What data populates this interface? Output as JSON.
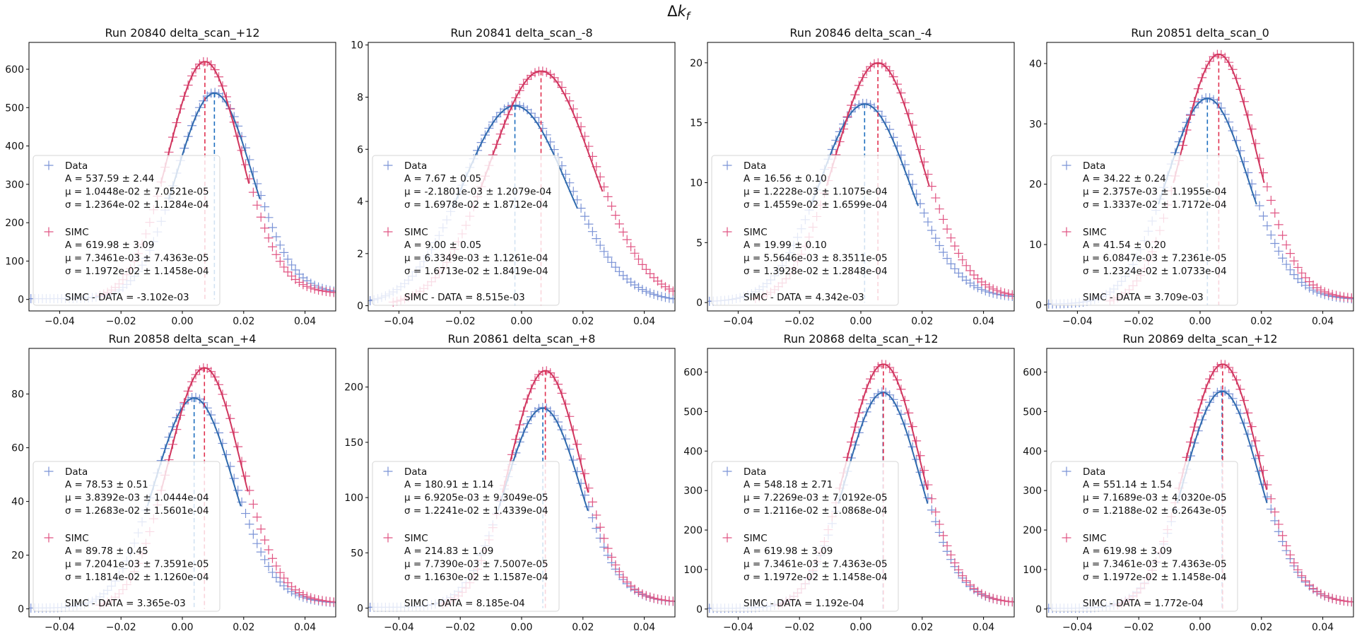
{
  "figure": {
    "suptitle_delta": "Δ",
    "suptitle_symbol": "k",
    "suptitle_subscript": "f",
    "legend_data_label": "Data",
    "legend_simc_label": "SIMC",
    "colors": {
      "data": "#7b93d6",
      "data_fit": "#2f6aad",
      "simc": "#e05583",
      "simc_fit": "#d0365e",
      "data_line": "#1f6fbf",
      "simc_line": "#e0304f"
    }
  },
  "chart_data": [
    {
      "type": "scatter",
      "title": "Run 20840 delta_scan_+12",
      "xlim": [
        -0.05,
        0.05
      ],
      "ylim": [
        -30,
        670
      ],
      "xticks": [
        -0.04,
        -0.02,
        0.0,
        0.02,
        0.04
      ],
      "xtick_labels": [
        "−0.04",
        "−0.02",
        "0.00",
        "0.02",
        "0.04"
      ],
      "yticks": [
        0,
        100,
        200,
        300,
        400,
        500,
        600
      ],
      "ytick_labels": [
        "0",
        "100",
        "200",
        "300",
        "400",
        "500",
        "600"
      ],
      "series": [
        {
          "name": "Data",
          "A": 537.59,
          "mu": 0.010448,
          "sigma": 0.012364,
          "tail": 0.6
        },
        {
          "name": "SIMC",
          "A": 619.98,
          "mu": 0.0073461,
          "sigma": 0.011972,
          "tail": 0.6
        }
      ],
      "legend_lines": {
        "data": [
          "A = 537.59 ± 2.44",
          "μ = 1.0448e-02 ± 7.0521e-05",
          "σ = 1.2364e-02 ± 1.1284e-04"
        ],
        "simc": [
          "A = 619.98 ± 3.09",
          "μ = 7.3461e-03 ± 7.4363e-05",
          "σ = 1.1972e-02 ± 1.1458e-04"
        ],
        "diff": "SIMC - DATA = -3.102e-03"
      }
    },
    {
      "type": "scatter",
      "title": "Run 20841 delta_scan_-8",
      "xlim": [
        -0.05,
        0.05
      ],
      "ylim": [
        -0.2,
        10.1
      ],
      "xticks": [
        -0.04,
        -0.02,
        0.0,
        0.02,
        0.04
      ],
      "xtick_labels": [
        "−0.04",
        "−0.02",
        "0.00",
        "0.02",
        "0.04"
      ],
      "yticks": [
        0,
        2,
        4,
        6,
        8,
        10
      ],
      "ytick_labels": [
        "0",
        "2",
        "4",
        "6",
        "8",
        "10"
      ],
      "series": [
        {
          "name": "Data",
          "A": 7.67,
          "mu": -0.0021801,
          "sigma": 0.016978,
          "tail": 1.2
        },
        {
          "name": "SIMC",
          "A": 9.0,
          "mu": 0.0063349,
          "sigma": 0.016713,
          "tail": 1.6
        }
      ],
      "legend_lines": {
        "data": [
          "A = 7.67 ± 0.05",
          "μ = -2.1801e-03 ± 1.2079e-04",
          "σ = 1.6978e-02 ± 1.8712e-04"
        ],
        "simc": [
          "A = 9.00 ± 0.05",
          "μ = 6.3349e-03 ± 1.1261e-04",
          "σ = 1.6713e-02 ± 1.8419e-04"
        ],
        "diff": "SIMC - DATA = 8.515e-03"
      }
    },
    {
      "type": "scatter",
      "title": "Run 20846 delta_scan_-4",
      "xlim": [
        -0.05,
        0.05
      ],
      "ylim": [
        -0.7,
        21.7
      ],
      "xticks": [
        -0.04,
        -0.02,
        0.0,
        0.02,
        0.04
      ],
      "xtick_labels": [
        "−0.04",
        "−0.02",
        "0.00",
        "0.02",
        "0.04"
      ],
      "yticks": [
        0,
        5,
        10,
        15,
        20
      ],
      "ytick_labels": [
        "0",
        "5",
        "10",
        "15",
        "20"
      ],
      "series": [
        {
          "name": "Data",
          "A": 16.56,
          "mu": 0.0012228,
          "sigma": 0.014559,
          "tail": 1.5
        },
        {
          "name": "SIMC",
          "A": 19.99,
          "mu": 0.0055646,
          "sigma": 0.013928,
          "tail": 1.6
        }
      ],
      "legend_lines": {
        "data": [
          "A = 16.56 ± 0.10",
          "μ = 1.2228e-03 ± 1.1075e-04",
          "σ = 1.4559e-02 ± 1.6599e-04"
        ],
        "simc": [
          "A = 19.99 ± 0.10",
          "μ = 5.5646e-03 ± 8.3511e-05",
          "σ = 1.3928e-02 ± 1.2848e-04"
        ],
        "diff": "SIMC - DATA = 4.342e-03"
      }
    },
    {
      "type": "scatter",
      "title": "Run 20851 delta_scan_0",
      "xlim": [
        -0.05,
        0.05
      ],
      "ylim": [
        -1,
        43.5
      ],
      "xticks": [
        -0.04,
        -0.02,
        0.0,
        0.02,
        0.04
      ],
      "xtick_labels": [
        "−0.04",
        "−0.02",
        "0.00",
        "0.02",
        "0.04"
      ],
      "yticks": [
        0,
        10,
        20,
        30,
        40
      ],
      "ytick_labels": [
        "0",
        "10",
        "20",
        "30",
        "40"
      ],
      "series": [
        {
          "name": "Data",
          "A": 34.22,
          "mu": 0.0023757,
          "sigma": 0.013337,
          "tail": 1.3
        },
        {
          "name": "SIMC",
          "A": 41.54,
          "mu": 0.0060847,
          "sigma": 0.012324,
          "tail": 1.4
        }
      ],
      "legend_lines": {
        "data": [
          "A = 34.22 ± 0.24",
          "μ = 2.3757e-03 ± 1.1955e-04",
          "σ = 1.3337e-02 ± 1.7172e-04"
        ],
        "simc": [
          "A = 41.54 ± 0.20",
          "μ = 6.0847e-03 ± 7.2361e-05",
          "σ = 1.2324e-02 ± 1.0733e-04"
        ],
        "diff": "SIMC - DATA = 3.709e-03"
      }
    },
    {
      "type": "scatter",
      "title": "Run 20858 delta_scan_+4",
      "xlim": [
        -0.05,
        0.05
      ],
      "ylim": [
        -3,
        97
      ],
      "xticks": [
        -0.04,
        -0.02,
        0.0,
        0.02,
        0.04
      ],
      "xtick_labels": [
        "−0.04",
        "−0.02",
        "0.00",
        "0.02",
        "0.04"
      ],
      "yticks": [
        0,
        20,
        40,
        60,
        80
      ],
      "ytick_labels": [
        "0",
        "20",
        "40",
        "60",
        "80"
      ],
      "series": [
        {
          "name": "Data",
          "A": 78.53,
          "mu": 0.0038392,
          "sigma": 0.012683,
          "tail": 1.0
        },
        {
          "name": "SIMC",
          "A": 89.78,
          "mu": 0.0072041,
          "sigma": 0.011814,
          "tail": 1.1
        }
      ],
      "legend_lines": {
        "data": [
          "A = 78.53 ± 0.51",
          "μ = 3.8392e-03 ± 1.0444e-04",
          "σ = 1.2683e-02 ± 1.5601e-04"
        ],
        "simc": [
          "A = 89.78 ± 0.45",
          "μ = 7.2041e-03 ± 7.3591e-05",
          "σ = 1.1814e-02 ± 1.1260e-04"
        ],
        "diff": "SIMC - DATA = 3.365e-03"
      }
    },
    {
      "type": "scatter",
      "title": "Run 20861 delta_scan_+8",
      "xlim": [
        -0.05,
        0.05
      ],
      "ylim": [
        -8,
        235
      ],
      "xticks": [
        -0.04,
        -0.02,
        0.0,
        0.02,
        0.04
      ],
      "xtick_labels": [
        "−0.04",
        "−0.02",
        "0.00",
        "0.02",
        "0.04"
      ],
      "yticks": [
        0,
        50,
        100,
        150,
        200
      ],
      "ytick_labels": [
        "0",
        "50",
        "100",
        "150",
        "200"
      ],
      "series": [
        {
          "name": "Data",
          "A": 180.91,
          "mu": 0.0069205,
          "sigma": 0.012241,
          "tail": 0.7
        },
        {
          "name": "SIMC",
          "A": 214.83,
          "mu": 0.007739,
          "sigma": 0.01163,
          "tail": 0.7
        }
      ],
      "legend_lines": {
        "data": [
          "A = 180.91 ± 1.14",
          "μ = 6.9205e-03 ± 9.3049e-05",
          "σ = 1.2241e-02 ± 1.4339e-04"
        ],
        "simc": [
          "A = 214.83 ± 1.09",
          "μ = 7.7390e-03 ± 7.5007e-05",
          "σ = 1.1630e-02 ± 1.1587e-04"
        ],
        "diff": "SIMC - DATA = 8.185e-04"
      }
    },
    {
      "type": "scatter",
      "title": "Run 20868 delta_scan_+12",
      "xlim": [
        -0.05,
        0.05
      ],
      "ylim": [
        -20,
        660
      ],
      "xticks": [
        -0.04,
        -0.02,
        0.0,
        0.02,
        0.04
      ],
      "xtick_labels": [
        "−0.04",
        "−0.02",
        "0.00",
        "0.02",
        "0.04"
      ],
      "yticks": [
        0,
        100,
        200,
        300,
        400,
        500,
        600
      ],
      "ytick_labels": [
        "0",
        "100",
        "200",
        "300",
        "400",
        "500",
        "600"
      ],
      "series": [
        {
          "name": "Data",
          "A": 548.18,
          "mu": 0.0072269,
          "sigma": 0.012116,
          "tail": 0.55
        },
        {
          "name": "SIMC",
          "A": 619.98,
          "mu": 0.0073461,
          "sigma": 0.011972,
          "tail": 0.55
        }
      ],
      "legend_lines": {
        "data": [
          "A = 548.18 ± 2.71",
          "μ = 7.2269e-03 ± 7.0192e-05",
          "σ = 1.2116e-02 ± 1.0868e-04"
        ],
        "simc": [
          "A = 619.98 ± 3.09",
          "μ = 7.3461e-03 ± 7.4363e-05",
          "σ = 1.1972e-02 ± 1.1458e-04"
        ],
        "diff": "SIMC - DATA = 1.192e-04"
      }
    },
    {
      "type": "scatter",
      "title": "Run 20869 delta_scan_+12",
      "xlim": [
        -0.05,
        0.05
      ],
      "ylim": [
        -20,
        660
      ],
      "xticks": [
        -0.04,
        -0.02,
        0.0,
        0.02,
        0.04
      ],
      "xtick_labels": [
        "−0.04",
        "−0.02",
        "0.00",
        "0.02",
        "0.04"
      ],
      "yticks": [
        0,
        100,
        200,
        300,
        400,
        500,
        600
      ],
      "ytick_labels": [
        "0",
        "100",
        "200",
        "300",
        "400",
        "500",
        "600"
      ],
      "series": [
        {
          "name": "Data",
          "A": 551.14,
          "mu": 0.0071689,
          "sigma": 0.012188,
          "tail": 0.55
        },
        {
          "name": "SIMC",
          "A": 619.98,
          "mu": 0.0073461,
          "sigma": 0.011972,
          "tail": 0.55
        }
      ],
      "legend_lines": {
        "data": [
          "A = 551.14 ± 1.54",
          "μ = 7.1689e-03 ± 4.0320e-05",
          "σ = 1.2188e-02 ± 6.2643e-05"
        ],
        "simc": [
          "A = 619.98 ± 3.09",
          "μ = 7.3461e-03 ± 7.4363e-05",
          "σ = 1.1972e-02 ± 1.1458e-04"
        ],
        "diff": "SIMC - DATA = 1.772e-04"
      }
    }
  ]
}
